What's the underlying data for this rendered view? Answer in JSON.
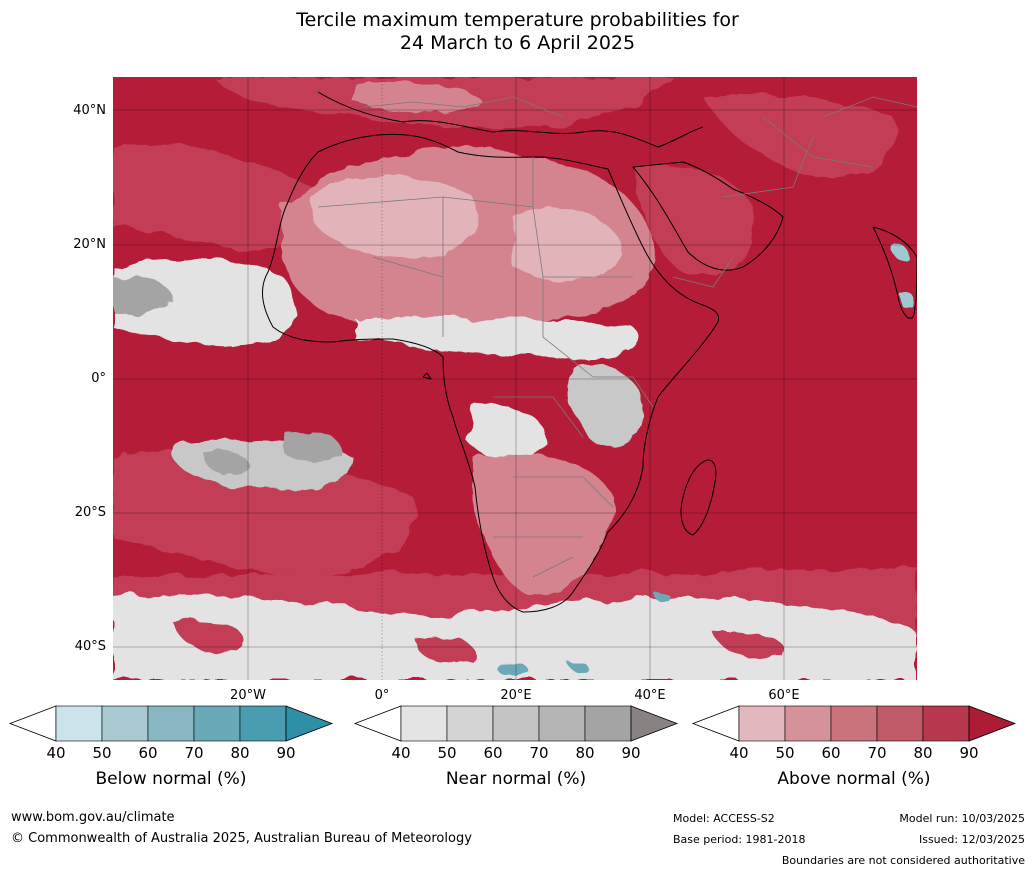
{
  "title_line1": "Tercile maximum temperature probabilities for",
  "title_line2": "24 March to 6 April 2025",
  "map": {
    "lat_labels": [
      "40°N",
      "20°N",
      "0°",
      "20°S",
      "40°S"
    ],
    "lon_labels": [
      "20°W",
      "0°",
      "20°E",
      "40°E",
      "60°E"
    ],
    "colors": {
      "ocean_hot": "#b51c38",
      "ocean_warm": "#c23e54",
      "land_mid": "#d4848f",
      "land_light": "#e2b4ba",
      "near_light": "#e3e3e3",
      "near_mid": "#c8c8c8",
      "near_dark": "#a4a4a4",
      "below": "#9ec9d3",
      "coast": "#000000",
      "border": "#7a7a7a"
    }
  },
  "colorbars": [
    {
      "label": "Below normal (%)",
      "ticks": [
        "40",
        "50",
        "60",
        "70",
        "80",
        "90"
      ],
      "colors": [
        "#ffffff",
        "#cbe3ea",
        "#a9c9d0",
        "#88b6c2",
        "#6aa9b7",
        "#4a9db0",
        "#2f8fa6"
      ]
    },
    {
      "label": "Near normal (%)",
      "ticks": [
        "40",
        "50",
        "60",
        "70",
        "80",
        "90"
      ],
      "colors": [
        "#ffffff",
        "#e4e4e4",
        "#d4d4d4",
        "#c4c4c4",
        "#b4b4b4",
        "#a4a4a4",
        "#888282"
      ]
    },
    {
      "label": "Above normal (%)",
      "ticks": [
        "40",
        "50",
        "60",
        "70",
        "80",
        "90"
      ],
      "colors": [
        "#ffffff",
        "#e2b7bd",
        "#d6929b",
        "#ca737d",
        "#c15a68",
        "#b8394f",
        "#ad1b35"
      ]
    }
  ],
  "footer": {
    "website": "www.bom.gov.au/climate",
    "copyright": "© Commonwealth of Australia 2025, Australian Bureau of Meteorology",
    "model": "Model: ACCESS-S2",
    "base_period": "Base period: 1981-2018",
    "model_run": "Model run: 10/03/2025",
    "issued": "Issued: 12/03/2025",
    "disclaimer": "Boundaries are not considered authoritative"
  }
}
